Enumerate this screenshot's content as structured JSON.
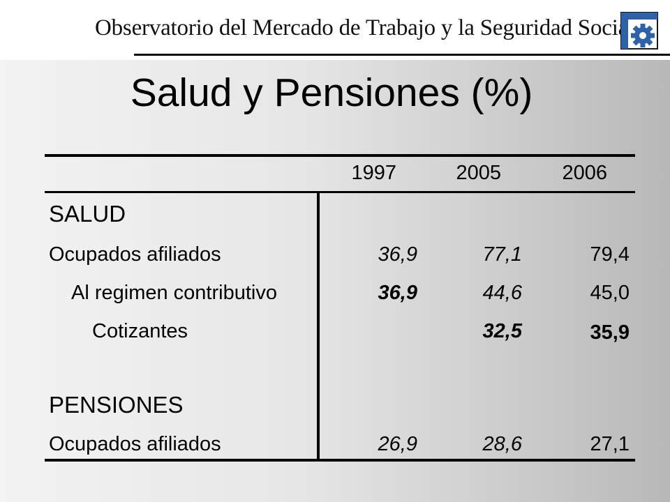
{
  "header": {
    "org_name": "Observatorio del Mercado de Trabajo y la Seguridad Social",
    "logo_icon": "gear-logo-icon",
    "colors": {
      "logo_blue": "#2d62a8",
      "logo_frame": "#1a1a1a"
    }
  },
  "slide": {
    "title": "Salud y Pensiones (%)"
  },
  "table": {
    "columns": [
      "1997",
      "2005",
      "2006"
    ],
    "sections": [
      {
        "label": "SALUD",
        "rows": [
          {
            "label": "Ocupados afiliados",
            "values": [
              "36,9",
              "77,1",
              "79,4"
            ]
          },
          {
            "label": "Al regimen contributivo",
            "values": [
              "36,9",
              "44,6",
              "45,0"
            ]
          },
          {
            "label": "Cotizantes",
            "values": [
              "",
              "32,5",
              "35,9"
            ]
          }
        ]
      },
      {
        "label": "PENSIONES",
        "rows": [
          {
            "label": "Ocupados afiliados",
            "values": [
              "26,9",
              "28,6",
              "27,1"
            ]
          }
        ]
      }
    ]
  }
}
